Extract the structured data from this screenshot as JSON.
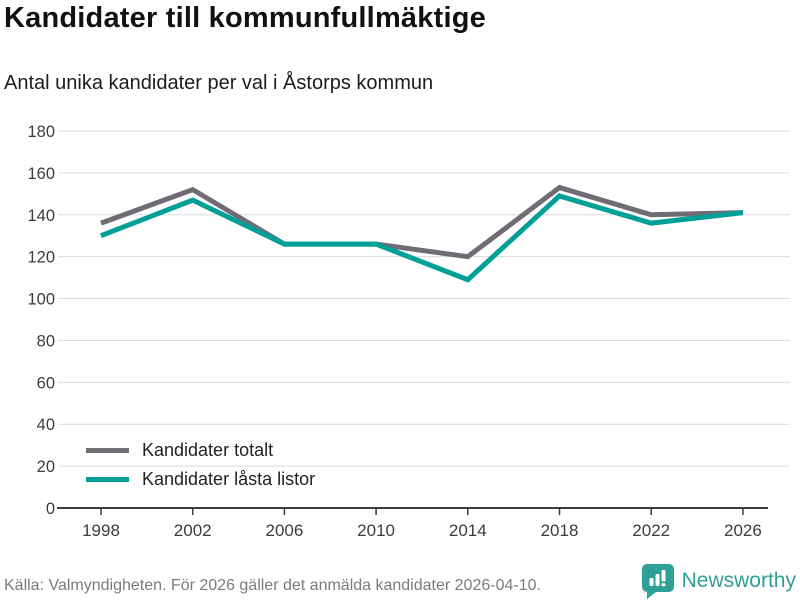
{
  "header": {
    "title": "Kandidater till kommunfullmäktige",
    "subtitle": "Antal unika kandidater per val i Åstorps kommun"
  },
  "chart_data": {
    "type": "line",
    "x": [
      1998,
      2002,
      2006,
      2010,
      2014,
      2018,
      2022,
      2026
    ],
    "series": [
      {
        "name": "Kandidater totalt",
        "color": "#716C74",
        "values": [
          136,
          152,
          126,
          126,
          120,
          153,
          140,
          141
        ]
      },
      {
        "name": "Kandidater låsta listor",
        "color": "#00A099",
        "values": [
          130,
          147,
          126,
          126,
          109,
          149,
          136,
          141
        ]
      }
    ],
    "ylim": [
      0,
      180
    ],
    "yticks": [
      0,
      20,
      40,
      60,
      80,
      100,
      120,
      140,
      160,
      180
    ],
    "grid": "horizontal",
    "legend_position": "inside-bottom-left",
    "xlabel": "",
    "ylabel": ""
  },
  "footer": {
    "source": "Källa: Valmyndigheten. För 2026 gäller det anmälda kandidater 2026-04-10.",
    "brand": "Newsworthy"
  },
  "icons": {
    "brand_logo": "newsworthy-bar-chart-bubble-icon"
  },
  "colors": {
    "brand": "#2FA096",
    "grid": "#DCDCDC",
    "axis": "#3C3C3C",
    "tick_label": "#3d3d3d"
  }
}
